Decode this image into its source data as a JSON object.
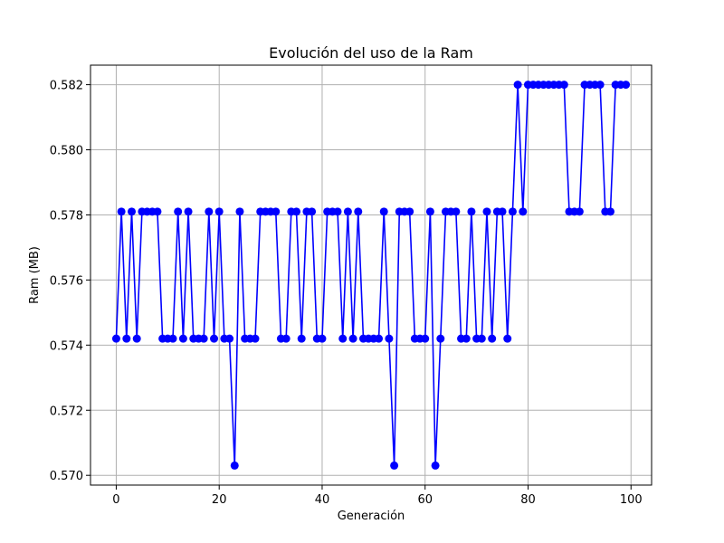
{
  "chart_data": {
    "type": "line",
    "title": "Evolución del uso de la Ram",
    "xlabel": "Generación",
    "ylabel": "Ram (MB)",
    "xlim": [
      -5,
      104
    ],
    "ylim": [
      0.5697,
      0.5826
    ],
    "xticks": [
      0,
      20,
      40,
      60,
      80,
      100
    ],
    "yticks": [
      0.57,
      0.572,
      0.574,
      0.576,
      0.578,
      0.58,
      0.582
    ],
    "ytick_labels": [
      "0.570",
      "0.572",
      "0.574",
      "0.576",
      "0.578",
      "0.580",
      "0.582"
    ],
    "grid": true,
    "line_color": "#0000ff",
    "marker": "circle",
    "x": [
      0,
      1,
      2,
      3,
      4,
      5,
      6,
      7,
      8,
      9,
      10,
      11,
      12,
      13,
      14,
      15,
      16,
      17,
      18,
      19,
      20,
      21,
      22,
      23,
      24,
      25,
      26,
      27,
      28,
      29,
      30,
      31,
      32,
      33,
      34,
      35,
      36,
      37,
      38,
      39,
      40,
      41,
      42,
      43,
      44,
      45,
      46,
      47,
      48,
      49,
      50,
      51,
      52,
      53,
      54,
      55,
      56,
      57,
      58,
      59,
      60,
      61,
      62,
      63,
      64,
      65,
      66,
      67,
      68,
      69,
      70,
      71,
      72,
      73,
      74,
      75,
      76,
      77,
      78,
      79,
      80,
      81,
      82,
      83,
      84,
      85,
      86,
      87,
      88,
      89,
      90,
      91,
      92,
      93,
      94,
      95,
      96,
      97,
      98,
      99
    ],
    "y": [
      0.5742,
      0.5781,
      0.5742,
      0.5781,
      0.5742,
      0.5781,
      0.5781,
      0.5781,
      0.5781,
      0.5742,
      0.5742,
      0.5742,
      0.5781,
      0.5742,
      0.5781,
      0.5742,
      0.5742,
      0.5742,
      0.5781,
      0.5742,
      0.5781,
      0.5742,
      0.5742,
      0.5703,
      0.5781,
      0.5742,
      0.5742,
      0.5742,
      0.5781,
      0.5781,
      0.5781,
      0.5781,
      0.5742,
      0.5742,
      0.5781,
      0.5781,
      0.5742,
      0.5781,
      0.5781,
      0.5742,
      0.5742,
      0.5781,
      0.5781,
      0.5781,
      0.5742,
      0.5781,
      0.5742,
      0.5781,
      0.5742,
      0.5742,
      0.5742,
      0.5742,
      0.5781,
      0.5742,
      0.5703,
      0.5781,
      0.5781,
      0.5781,
      0.5742,
      0.5742,
      0.5742,
      0.5781,
      0.5703,
      0.5742,
      0.5781,
      0.5781,
      0.5781,
      0.5742,
      0.5742,
      0.5781,
      0.5742,
      0.5742,
      0.5781,
      0.5742,
      0.5781,
      0.5781,
      0.5742,
      0.5781,
      0.582,
      0.5781,
      0.582,
      0.582,
      0.582,
      0.582,
      0.582,
      0.582,
      0.582,
      0.582,
      0.5781,
      0.5781,
      0.5781,
      0.582,
      0.582,
      0.582,
      0.582,
      0.5781,
      0.5781,
      0.582,
      0.582,
      0.582
    ]
  }
}
